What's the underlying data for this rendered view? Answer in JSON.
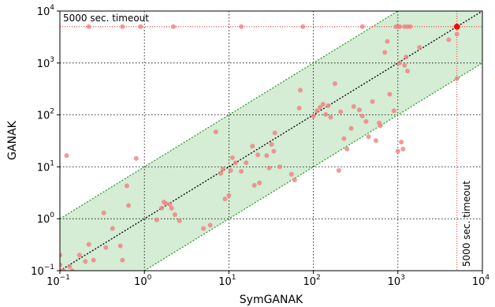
{
  "chart_data": {
    "type": "scatter",
    "xlabel": "SymGANAK",
    "ylabel": "GANAK",
    "x_scale": "log",
    "y_scale": "log",
    "xlim": [
      0.1,
      10000
    ],
    "ylim": [
      0.1,
      10000
    ],
    "x_ticks": [
      {
        "base": "10",
        "exp": "−1",
        "value": 0.1
      },
      {
        "base": "10",
        "exp": "0",
        "value": 1
      },
      {
        "base": "10",
        "exp": "1",
        "value": 10
      },
      {
        "base": "10",
        "exp": "2",
        "value": 100
      },
      {
        "base": "10",
        "exp": "3",
        "value": 1000
      },
      {
        "base": "10",
        "exp": "4",
        "value": 10000
      }
    ],
    "y_ticks": [
      {
        "base": "10",
        "exp": "−1",
        "value": 0.1
      },
      {
        "base": "10",
        "exp": "0",
        "value": 1
      },
      {
        "base": "10",
        "exp": "1",
        "value": 10
      },
      {
        "base": "10",
        "exp": "2",
        "value": 100
      },
      {
        "base": "10",
        "exp": "3",
        "value": 1000
      },
      {
        "base": "10",
        "exp": "4",
        "value": 10000
      }
    ],
    "grid": true,
    "diagonal_line": "y = x",
    "band_factor": 10,
    "timeout_value": 5000,
    "annotations": {
      "x_timeout_label": "5000 sec. timeout",
      "y_timeout_label": "5000 sec. timeout"
    },
    "colors": {
      "points": "#f08080",
      "highlight_point": "#ff0000",
      "band_fill": "#d5ecd5",
      "band_edge": "#2ca02c",
      "diagonal": "#000000",
      "timeout_line": "#ff0000",
      "grid": "#000000"
    },
    "points": [
      [
        0.1,
        0.1
      ],
      [
        0.1,
        0.13
      ],
      [
        0.1,
        0.2
      ],
      [
        0.11,
        0.1
      ],
      [
        0.13,
        0.12
      ],
      [
        0.14,
        0.1
      ],
      [
        0.2,
        0.15
      ],
      [
        0.12,
        16.5
      ],
      [
        0.17,
        0.2
      ],
      [
        0.25,
        0.16
      ],
      [
        0.22,
        0.32
      ],
      [
        0.33,
        1.3
      ],
      [
        0.35,
        0.28
      ],
      [
        0.42,
        0.65
      ],
      [
        0.52,
        0.3
      ],
      [
        0.55,
        0.16
      ],
      [
        0.62,
        4.3
      ],
      [
        0.65,
        1.8
      ],
      [
        0.8,
        14.5
      ],
      [
        1.4,
        0.95
      ],
      [
        1.6,
        1.6
      ],
      [
        1.7,
        2.1
      ],
      [
        1.8,
        1.95
      ],
      [
        2.0,
        1.9
      ],
      [
        2.1,
        1.6
      ],
      [
        2.3,
        1.2
      ],
      [
        2.6,
        0.92
      ],
      [
        5,
        0.65
      ],
      [
        6,
        0.75
      ],
      [
        7,
        47
      ],
      [
        8,
        7.5
      ],
      [
        8.5,
        9
      ],
      [
        9,
        2.4
      ],
      [
        10,
        2.8
      ],
      [
        10.5,
        8.5
      ],
      [
        11,
        15
      ],
      [
        12,
        12
      ],
      [
        14,
        8.2
      ],
      [
        16,
        12
      ],
      [
        19,
        25
      ],
      [
        20,
        4.4
      ],
      [
        22,
        17
      ],
      [
        23,
        4.9
      ],
      [
        28,
        16.5
      ],
      [
        30,
        9.5
      ],
      [
        32,
        27
      ],
      [
        34,
        20
      ],
      [
        35,
        45
      ],
      [
        40,
        10
      ],
      [
        55,
        7.2
      ],
      [
        60,
        5.6
      ],
      [
        68,
        135
      ],
      [
        70,
        300
      ],
      [
        100,
        95
      ],
      [
        110,
        120
      ],
      [
        120,
        140
      ],
      [
        130,
        160
      ],
      [
        140,
        102
      ],
      [
        150,
        150
      ],
      [
        160,
        90
      ],
      [
        180,
        400
      ],
      [
        200,
        8.5
      ],
      [
        210,
        115
      ],
      [
        230,
        35
      ],
      [
        250,
        22
      ],
      [
        280,
        55
      ],
      [
        300,
        145
      ],
      [
        350,
        125
      ],
      [
        380,
        95
      ],
      [
        420,
        75
      ],
      [
        450,
        38
      ],
      [
        500,
        180
      ],
      [
        550,
        32
      ],
      [
        600,
        70
      ],
      [
        620,
        62
      ],
      [
        700,
        1600
      ],
      [
        750,
        2600
      ],
      [
        800,
        250
      ],
      [
        900,
        120
      ],
      [
        1000,
        20
      ],
      [
        1050,
        1000
      ],
      [
        1100,
        30
      ],
      [
        1150,
        22
      ],
      [
        1200,
        900
      ],
      [
        1250,
        1300
      ],
      [
        1300,
        700
      ],
      [
        1400,
        5000
      ],
      [
        1800,
        2000
      ],
      [
        4000,
        2800
      ],
      [
        5000,
        500
      ],
      [
        5000,
        3600
      ],
      [
        0.22,
        5000
      ],
      [
        0.55,
        5000
      ],
      [
        0.9,
        5000
      ],
      [
        2.2,
        5000
      ],
      [
        14,
        5000
      ],
      [
        75,
        5000
      ],
      [
        380,
        5000
      ],
      [
        950,
        5000
      ],
      [
        1000,
        5000
      ],
      [
        1050,
        5000
      ],
      [
        1200,
        5000
      ],
      [
        1300,
        5000
      ]
    ],
    "highlight_point": [
      5000,
      5000
    ]
  }
}
